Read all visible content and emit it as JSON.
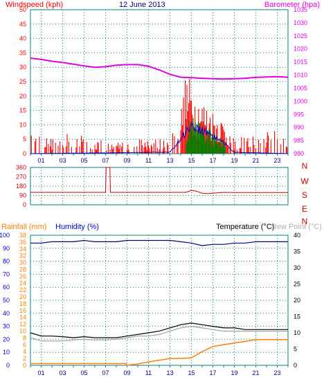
{
  "chart_data": [
    {
      "type": "line",
      "title": "12 June 2013",
      "y_left_label": "Windspeed (kph)",
      "y_right_label": "Barometer (hpa)",
      "x_tick_labels": [
        "01",
        "03",
        "05",
        "07",
        "09",
        "11",
        "13",
        "15",
        "17",
        "19",
        "21",
        "23"
      ],
      "x_tick_hours": [
        1,
        3,
        5,
        7,
        9,
        11,
        13,
        15,
        17,
        19,
        21,
        23
      ],
      "xlim": [
        0,
        24
      ],
      "ylim_left": [
        0,
        50
      ],
      "ylim_right": [
        980,
        1035
      ],
      "y_left_ticks": [
        0,
        5,
        10,
        15,
        20,
        25,
        30,
        35,
        40,
        45,
        50
      ],
      "y_right_ticks": [
        980,
        985,
        990,
        995,
        1000,
        1005,
        1010,
        1015,
        1020,
        1025,
        1030,
        1035
      ],
      "grid": true,
      "colors": {
        "gust": "#ff0000",
        "speed": "#0000cc",
        "direction_bar": "#008000",
        "barometer": "#e000e0",
        "axes": "#008080"
      },
      "series": [
        {
          "name": "Barometer (hpa)",
          "axis": "right",
          "x": [
            0,
            1,
            2,
            3,
            4,
            5,
            6,
            7,
            8,
            9,
            10,
            11,
            12,
            13,
            14,
            15,
            16,
            17,
            18,
            19,
            20,
            21,
            22,
            23,
            24
          ],
          "values": [
            1016.5,
            1016,
            1015.3,
            1014.8,
            1014.2,
            1013.5,
            1013,
            1013.2,
            1013.8,
            1014,
            1014,
            1013.4,
            1012,
            1010.3,
            1009.2,
            1009,
            1008.8,
            1008.6,
            1008.5,
            1008.6,
            1008.8,
            1009.1,
            1009.3,
            1009.4,
            1009.2
          ]
        }
      ],
      "wind_gust_profile": {
        "x": [
          0,
          2,
          4,
          6,
          8,
          10,
          12,
          13,
          14,
          14.5,
          15,
          15.5,
          16,
          16.5,
          17,
          17.5,
          18,
          18.5,
          19,
          20,
          21,
          22,
          23,
          24
        ],
        "values": [
          5,
          4,
          6,
          4,
          3,
          4,
          4,
          5,
          12,
          22,
          20,
          16,
          15,
          13,
          12,
          11,
          9,
          6,
          4,
          5,
          5,
          6,
          7,
          4
        ]
      },
      "wind_speed_profile": {
        "x": [
          0,
          13,
          14,
          14.5,
          15,
          15.5,
          16,
          16.5,
          17,
          17.5,
          18,
          18.5,
          19,
          24
        ],
        "values": [
          0,
          0.5,
          5,
          8,
          10,
          9,
          8,
          7.5,
          6,
          5,
          4,
          2,
          0.5,
          0
        ]
      }
    },
    {
      "type": "line",
      "title": "",
      "ylim": [
        0,
        360
      ],
      "y_ticks": [
        0,
        90,
        180,
        270,
        360
      ],
      "direction_letters": [
        "N",
        "W",
        "S",
        "E",
        "N"
      ],
      "colors": {
        "direction": "#cc0000",
        "axes": "#008080"
      },
      "series": [
        {
          "name": "",
          "x": [
            0,
            7,
            7.05,
            7.4,
            7.45,
            13,
            14.5,
            15,
            15.5,
            16,
            16.5,
            17,
            18,
            19,
            24
          ],
          "values": [
            120,
            120,
            360,
            360,
            120,
            120,
            120,
            140,
            130,
            112,
            108,
            112,
            120,
            118,
            118
          ]
        }
      ]
    },
    {
      "type": "line",
      "title": "",
      "y_left_label_1": "Rainfall (mm)",
      "y_left_label_2": "Humidity (%)",
      "y_right_label_1": "Temperature (°C)",
      "y_right_label_2": "Dew Point (°C)",
      "ylim_rain": [
        0,
        38
      ],
      "ylim_humidity": [
        0,
        100
      ],
      "ylim_temp": [
        0,
        40
      ],
      "y_rain_ticks": [
        0,
        2,
        4,
        6,
        8,
        10,
        12,
        14,
        16,
        18,
        20,
        22,
        24,
        26,
        28,
        30,
        32,
        34,
        36,
        38
      ],
      "y_humidity_ticks": [
        0,
        10,
        20,
        30,
        40,
        50,
        60,
        70,
        80,
        90,
        100
      ],
      "y_temp_ticks": [
        0,
        5,
        10,
        15,
        20,
        25,
        30,
        35,
        40
      ],
      "colors": {
        "rainfall": "#ff8000",
        "humidity": "#000080",
        "temperature": "#000000",
        "dew_point": "#a0a0a0",
        "axes": "#008080"
      },
      "series": [
        {
          "name": "Humidity (%)",
          "axis": "humidity",
          "x": [
            0,
            1,
            2,
            3,
            4,
            5,
            6,
            7,
            8,
            9,
            10,
            11,
            12,
            13,
            14,
            15,
            16,
            17,
            18,
            19,
            20,
            21,
            22,
            23,
            24
          ],
          "values": [
            94,
            94,
            95,
            95,
            95,
            96,
            95,
            95,
            95,
            96,
            96,
            96,
            96,
            96,
            95,
            94,
            92,
            93,
            93,
            94,
            94,
            95,
            95,
            95,
            95
          ]
        },
        {
          "name": "Temperature (°C)",
          "axis": "temp",
          "x": [
            0,
            1,
            2,
            3,
            4,
            5,
            6,
            7,
            8,
            9,
            10,
            11,
            12,
            13,
            14,
            15,
            16,
            17,
            18,
            19,
            20,
            21,
            22,
            23,
            24
          ],
          "values": [
            10,
            9,
            9,
            8.8,
            8.5,
            8.8,
            8.5,
            8.5,
            8.5,
            9,
            9.5,
            10,
            10.5,
            11.5,
            12.5,
            13,
            12.5,
            12,
            11.5,
            11.5,
            11,
            11,
            11,
            11,
            11
          ]
        },
        {
          "name": "Dew Point (°C)",
          "axis": "temp",
          "x": [
            0,
            1,
            2,
            3,
            4,
            5,
            6,
            7,
            8,
            9,
            10,
            11,
            12,
            13,
            14,
            15,
            16,
            17,
            18,
            19,
            20,
            21,
            22,
            23,
            24
          ],
          "values": [
            8.5,
            7.5,
            7.5,
            7.5,
            7.8,
            8,
            7.8,
            7.8,
            8,
            8.5,
            9,
            9,
            9.5,
            10.5,
            11.5,
            12,
            11.5,
            11,
            10.5,
            10.5,
            10.5,
            10.5,
            10.5,
            10.5,
            10.5
          ]
        },
        {
          "name": "Rainfall (mm)",
          "axis": "rain",
          "x": [
            0,
            5,
            8.9,
            9,
            10,
            11,
            12,
            13,
            14,
            15,
            16,
            17,
            18,
            19,
            20,
            21,
            22,
            23,
            24
          ],
          "values": [
            0.5,
            0.5,
            0.5,
            0,
            0.4,
            1,
            1.5,
            2,
            2,
            2.2,
            4,
            5.5,
            6,
            6.5,
            7,
            7.5,
            7.5,
            7.5,
            7.5
          ]
        }
      ]
    }
  ]
}
